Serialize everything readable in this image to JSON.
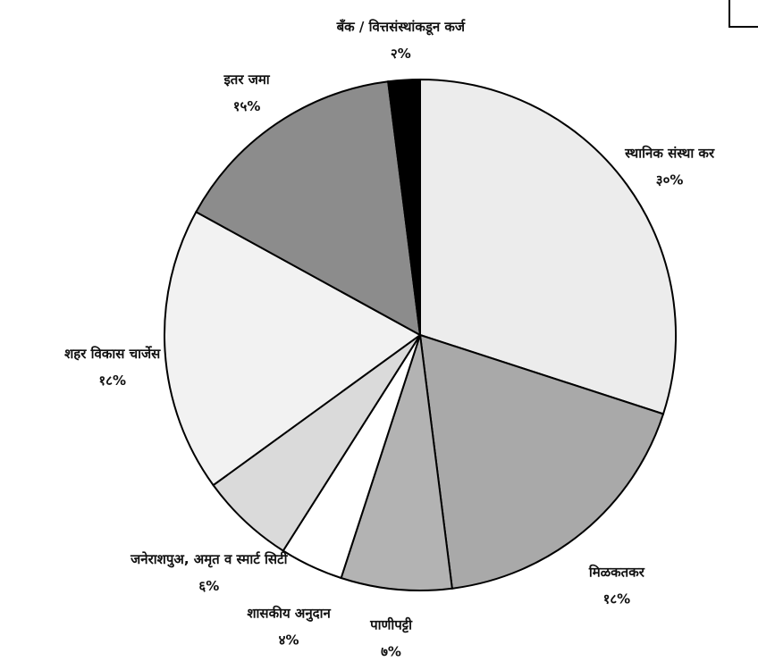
{
  "chart_data": {
    "type": "pie",
    "categories": [
      "स्थानिक संस्था कर",
      "मिळकतकर",
      "पाणीपट्टी",
      "शासकीय अनुदान",
      "जनेराशपुअ, अमृत व स्मार्ट सिटी",
      "शहर विकास चार्जेस",
      "इतर जमा",
      "बँक / वित्तसंस्थांकडून कर्ज"
    ],
    "values": [
      30,
      18,
      7,
      4,
      6,
      18,
      15,
      2
    ],
    "value_labels": [
      "३०%",
      "१८%",
      "७%",
      "४%",
      "६%",
      "१८%",
      "१५%",
      "२%"
    ],
    "colors": [
      "#ececec",
      "#a9a9a9",
      "#b3b3b3",
      "#ffffff",
      "#dadada",
      "#f2f2f2",
      "#8c8c8c",
      "#000000"
    ]
  }
}
